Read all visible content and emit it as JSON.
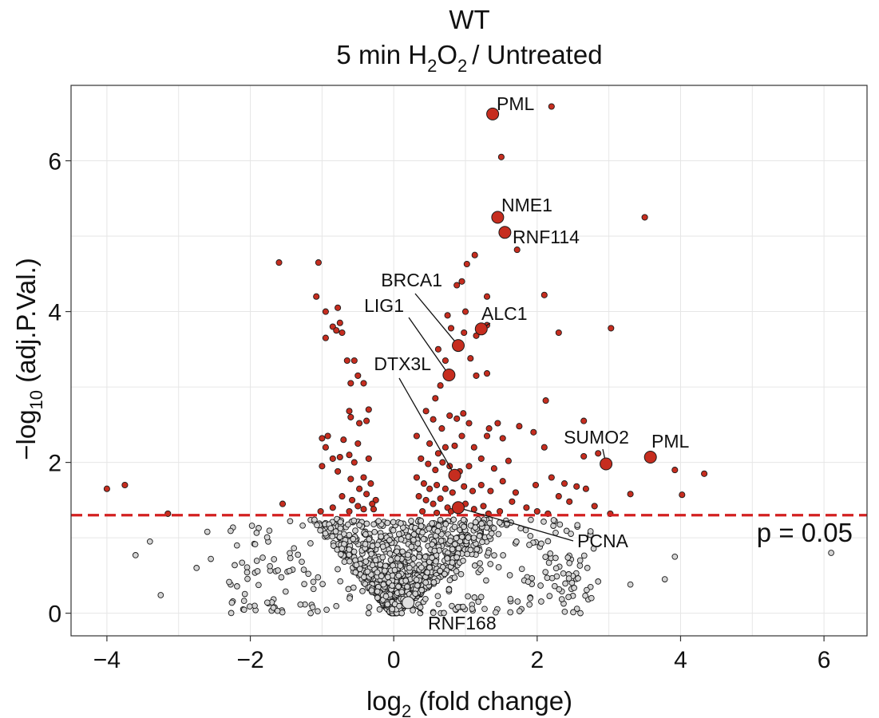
{
  "chart_data": {
    "type": "scatter",
    "title": "WT",
    "subtitle": {
      "prefix": "5 min H",
      "sub1": "2",
      "mid": "O",
      "sub2": "2",
      "suffix": "/ Untreated"
    },
    "xlabel": {
      "main": "log",
      "sub": "2",
      "rest": " (fold change)"
    },
    "ylabel": {
      "main": "−log",
      "sub": "10",
      "rest": " (adj.P.Val.)"
    },
    "xlim": [
      -4.5,
      6.6
    ],
    "ylim": [
      -0.3,
      7.0
    ],
    "x_ticks": [
      -4,
      -2,
      0,
      2,
      4,
      6
    ],
    "x_tick_labels": [
      "−4",
      "−2",
      "0",
      "2",
      "4",
      "6"
    ],
    "y_ticks": [
      0,
      2,
      4,
      6
    ],
    "y_tick_labels": [
      "0",
      "2",
      "4",
      "6"
    ],
    "grid": true,
    "threshold": {
      "y": 1.3,
      "label": "p = 0.05",
      "color": "#d32020"
    },
    "colors": {
      "significant": "#c62d1f",
      "nonsignificant": "#d4d4d4",
      "outline": "#1a1a1a"
    },
    "labeled_points": [
      {
        "label": "PML",
        "x": 1.38,
        "y": 6.62,
        "significant": true
      },
      {
        "label": "NME1",
        "x": 1.45,
        "y": 5.25,
        "significant": true
      },
      {
        "label": "RNF114",
        "x": 1.55,
        "y": 5.05,
        "significant": true
      },
      {
        "label": "BRCA1",
        "x": 0.9,
        "y": 3.55,
        "significant": true
      },
      {
        "label": "ALC1",
        "x": 1.22,
        "y": 3.77,
        "significant": true
      },
      {
        "label": "LIG1",
        "x": 0.77,
        "y": 3.16,
        "significant": true
      },
      {
        "label": "DTX3L",
        "x": 0.85,
        "y": 1.83,
        "significant": true
      },
      {
        "label": "SUMO2",
        "x": 2.96,
        "y": 1.98,
        "significant": true
      },
      {
        "label": "PML",
        "x": 3.58,
        "y": 2.07,
        "significant": true
      },
      {
        "label": "PCNA",
        "x": 0.9,
        "y": 1.4,
        "significant": true
      },
      {
        "label": "RNF168",
        "x": 0.2,
        "y": 0.14,
        "significant": false
      }
    ],
    "significant_points": [
      [
        2.2,
        6.72
      ],
      [
        1.5,
        6.05
      ],
      [
        3.5,
        5.25
      ],
      [
        1.72,
        4.82
      ],
      [
        1.13,
        4.75
      ],
      [
        1.02,
        4.63
      ],
      [
        0.95,
        4.4
      ],
      [
        0.88,
        4.35
      ],
      [
        1.3,
        4.2
      ],
      [
        2.1,
        4.22
      ],
      [
        -1.6,
        4.65
      ],
      [
        -1.05,
        4.65
      ],
      [
        -1.08,
        4.2
      ],
      [
        1.0,
        4.0
      ],
      [
        0.75,
        3.95
      ],
      [
        1.3,
        3.82
      ],
      [
        0.8,
        3.78
      ],
      [
        0.98,
        3.72
      ],
      [
        1.15,
        3.68
      ],
      [
        2.3,
        3.72
      ],
      [
        3.03,
        3.78
      ],
      [
        -0.78,
        4.05
      ],
      [
        -0.95,
        4.0
      ],
      [
        -0.85,
        3.8
      ],
      [
        -0.75,
        3.85
      ],
      [
        -0.8,
        3.75
      ],
      [
        -0.72,
        3.72
      ],
      [
        -0.95,
        3.65
      ],
      [
        -0.55,
        3.35
      ],
      [
        0.62,
        3.5
      ],
      [
        0.72,
        3.35
      ],
      [
        1.07,
        3.38
      ],
      [
        -0.5,
        3.15
      ],
      [
        -0.65,
        3.35
      ],
      [
        -0.42,
        3.05
      ],
      [
        -0.6,
        3.05
      ],
      [
        0.65,
        3.02
      ],
      [
        0.58,
        2.85
      ],
      [
        1.15,
        3.15
      ],
      [
        1.3,
        3.18
      ],
      [
        2.12,
        2.82
      ],
      [
        -0.6,
        2.6
      ],
      [
        -0.35,
        2.7
      ],
      [
        -0.48,
        2.52
      ],
      [
        -0.62,
        2.68
      ],
      [
        -0.38,
        2.55
      ],
      [
        0.45,
        2.68
      ],
      [
        0.55,
        2.57
      ],
      [
        0.67,
        2.45
      ],
      [
        0.78,
        2.62
      ],
      [
        0.88,
        2.58
      ],
      [
        0.97,
        2.65
      ],
      [
        1.05,
        2.52
      ],
      [
        1.33,
        2.45
      ],
      [
        1.45,
        2.52
      ],
      [
        1.75,
        2.48
      ],
      [
        1.95,
        2.4
      ],
      [
        2.65,
        2.55
      ],
      [
        -0.92,
        2.35
      ],
      [
        -1.0,
        2.32
      ],
      [
        -0.7,
        2.3
      ],
      [
        -0.5,
        2.25
      ],
      [
        -0.62,
        2.1
      ],
      [
        -0.85,
        2.05
      ],
      [
        -0.95,
        2.2
      ],
      [
        -0.75,
        2.07
      ],
      [
        -0.55,
        2.0
      ],
      [
        -0.35,
        2.05
      ],
      [
        0.32,
        2.35
      ],
      [
        0.5,
        2.25
      ],
      [
        0.62,
        2.12
      ],
      [
        0.72,
        2.2
      ],
      [
        0.85,
        2.22
      ],
      [
        0.95,
        2.35
      ],
      [
        1.12,
        2.2
      ],
      [
        1.3,
        2.35
      ],
      [
        1.52,
        2.32
      ],
      [
        2.1,
        2.2
      ],
      [
        2.65,
        2.08
      ],
      [
        0.38,
        2.05
      ],
      [
        0.48,
        1.98
      ],
      [
        0.58,
        1.9
      ],
      [
        0.68,
        2.0
      ],
      [
        0.78,
        1.95
      ],
      [
        0.92,
        1.88
      ],
      [
        1.05,
        1.95
      ],
      [
        1.22,
        2.05
      ],
      [
        1.4,
        1.92
      ],
      [
        1.6,
        2.02
      ],
      [
        2.85,
        2.12
      ],
      [
        3.92,
        1.9
      ],
      [
        4.33,
        1.85
      ],
      [
        3.3,
        1.58
      ],
      [
        4.02,
        1.57
      ],
      [
        -1.0,
        1.95
      ],
      [
        -0.78,
        1.88
      ],
      [
        -0.6,
        1.78
      ],
      [
        -0.42,
        1.8
      ],
      [
        -0.32,
        1.72
      ],
      [
        -0.48,
        1.65
      ],
      [
        -0.38,
        1.58
      ],
      [
        -0.25,
        1.5
      ],
      [
        -0.58,
        1.5
      ],
      [
        -0.72,
        1.55
      ],
      [
        -0.5,
        1.42
      ],
      [
        -0.3,
        1.45
      ],
      [
        -0.62,
        1.35
      ],
      [
        -0.42,
        1.38
      ],
      [
        -0.85,
        1.4
      ],
      [
        -1.02,
        1.35
      ],
      [
        -0.28,
        1.38
      ],
      [
        0.32,
        1.8
      ],
      [
        0.42,
        1.72
      ],
      [
        0.5,
        1.65
      ],
      [
        0.6,
        1.7
      ],
      [
        0.72,
        1.65
      ],
      [
        0.82,
        1.6
      ],
      [
        0.98,
        1.68
      ],
      [
        1.1,
        1.62
      ],
      [
        1.22,
        1.7
      ],
      [
        1.35,
        1.62
      ],
      [
        1.52,
        1.75
      ],
      [
        1.7,
        1.6
      ],
      [
        1.98,
        1.7
      ],
      [
        2.2,
        1.8
      ],
      [
        2.38,
        1.72
      ],
      [
        2.55,
        1.68
      ],
      [
        2.68,
        1.65
      ],
      [
        2.3,
        1.55
      ],
      [
        2.45,
        1.48
      ],
      [
        2.8,
        1.42
      ],
      [
        0.35,
        1.55
      ],
      [
        0.45,
        1.5
      ],
      [
        0.55,
        1.45
      ],
      [
        0.65,
        1.52
      ],
      [
        0.75,
        1.4
      ],
      [
        1.0,
        1.45
      ],
      [
        1.12,
        1.38
      ],
      [
        1.25,
        1.42
      ],
      [
        1.48,
        1.35
      ],
      [
        1.65,
        1.48
      ],
      [
        1.85,
        1.4
      ],
      [
        2.0,
        1.35
      ],
      [
        0.4,
        1.35
      ],
      [
        0.6,
        1.33
      ],
      [
        0.8,
        1.35
      ],
      [
        1.32,
        1.32
      ],
      [
        2.15,
        1.32
      ],
      [
        3.02,
        1.32
      ],
      [
        -1.55,
        1.45
      ],
      [
        -3.15,
        1.32
      ],
      [
        -4.0,
        1.65
      ],
      [
        -3.75,
        1.7
      ]
    ],
    "nonsignificant_summary": "dense cloud of grey points below the threshold line, forming a V centred near x = 0"
  }
}
